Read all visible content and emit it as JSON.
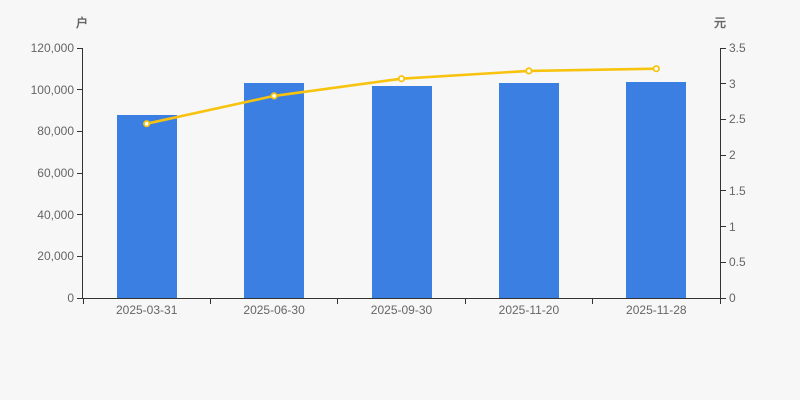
{
  "chart_data": {
    "type": "bar",
    "title": "",
    "categories": [
      "2025-03-31",
      "2025-06-30",
      "2025-09-30",
      "2025-11-20",
      "2025-11-28"
    ],
    "series": [
      {
        "type": "bar",
        "axis": "left",
        "values": [
          88000,
          103400,
          101600,
          103100,
          103600
        ],
        "color": "#3b7fe2"
      },
      {
        "type": "line",
        "axis": "right",
        "values": [
          2.44,
          2.83,
          3.07,
          3.18,
          3.21
        ],
        "color": "#f8c30e",
        "marker_fill": "#ffffff"
      }
    ],
    "axes": {
      "left": {
        "label": "户",
        "min": 0,
        "max": 120000,
        "tick_labels": [
          "0",
          "20,000",
          "40,000",
          "60,000",
          "80,000",
          "100,000",
          "120,000"
        ]
      },
      "right": {
        "label": "元",
        "min": 0,
        "max": 3.5,
        "tick_labels": [
          "0",
          "0.5",
          "1",
          "1.5",
          "2",
          "2.5",
          "3",
          "3.5"
        ]
      }
    },
    "legend": null,
    "grid": false,
    "style": {
      "background": "#f7f7f7",
      "axis_color": "#333333",
      "tick_label_color": "#666666"
    }
  }
}
